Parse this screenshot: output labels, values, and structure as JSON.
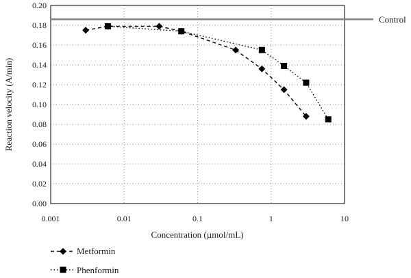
{
  "chart_data": {
    "type": "line",
    "xscale": "log",
    "xlim": [
      0.001,
      10
    ],
    "ylim": [
      0,
      0.2
    ],
    "xlabel": "Concentration (µmol/mL)",
    "ylabel": "Reaction velocity (A/min)",
    "x_ticks": [
      0.001,
      0.01,
      0.1,
      1,
      10
    ],
    "x_tick_labels": [
      "0.001",
      "0.01",
      "0.1",
      "1",
      "10"
    ],
    "y_ticks": [
      0,
      0.02,
      0.04,
      0.06,
      0.08,
      0.1,
      0.12,
      0.14,
      0.16,
      0.18,
      0.2
    ],
    "y_tick_labels": [
      "0.00",
      "0.02",
      "0.04",
      "0.06",
      "0.08",
      "0.10",
      "0.12",
      "0.14",
      "0.16",
      "0.18",
      "0.20"
    ],
    "grid": true,
    "legend": "bottom-left",
    "reference_line": {
      "label": "Control",
      "y": 0.186,
      "color": "#808080"
    },
    "series": [
      {
        "name": "Metformin",
        "marker": "diamond",
        "line_style": "dashed",
        "color": "#000000",
        "x": [
          0.003,
          0.006,
          0.03,
          0.06,
          0.33,
          0.75,
          1.5,
          3
        ],
        "y": [
          0.175,
          0.179,
          0.179,
          0.174,
          0.155,
          0.136,
          0.115,
          0.088
        ]
      },
      {
        "name": "Phenformin",
        "marker": "square",
        "line_style": "dotted",
        "color": "#000000",
        "x": [
          0.006,
          0.06,
          0.75,
          1.5,
          3,
          6
        ],
        "y": [
          0.179,
          0.174,
          0.155,
          0.139,
          0.122,
          0.085
        ]
      }
    ]
  }
}
